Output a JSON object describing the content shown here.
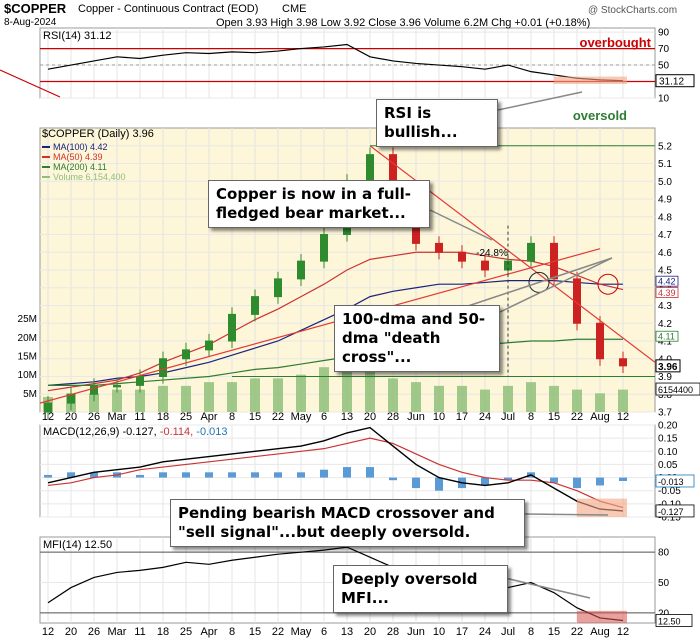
{
  "header": {
    "symbol": "$COPPER",
    "name": "Copper - Continuous Contract (EOD)",
    "exchange": "CME",
    "date": "8-Aug-2024",
    "ohlc": "Open 3.93  High 3.98  Low 3.92  Close 3.96  Volume 6.2M  Chg +0.01 (+0.18%)",
    "watermark": "@ StockCharts.com"
  },
  "annotations": {
    "overbought": "overbought",
    "oversold": "oversold",
    "rsi_note": "RSI is bullish...",
    "bear_note": "Copper is now in a full-fledged bear market...",
    "cross_note": "100-dma and 50-dma \"death cross\"...",
    "pct_drop": "-24.8%",
    "macd_note": "Pending bearish MACD crossover and \"sell signal\"...but deeply oversold.",
    "mfi_note": "Deeply oversold MFI..."
  },
  "colors": {
    "up": "#2e8b2e",
    "down": "#cc2222",
    "rsi_line": "#000000",
    "ma100": "#1a237e",
    "ma50": "#cc3333",
    "ma200": "#2e7d32",
    "volume": "#8fbf7a",
    "trend": "#e53935",
    "highlight": "#f4a582"
  },
  "chart_data": [
    {
      "type": "line",
      "title": "RSI(14) 31.12",
      "value_label": "31.12",
      "levels": [
        70,
        30
      ],
      "ylim": [
        10,
        95
      ],
      "y_ticks": [
        "90",
        "70",
        "50",
        "30",
        "10"
      ],
      "x": [
        "12",
        "20",
        "26",
        "Mar",
        "11",
        "18",
        "25",
        "Apr",
        "8",
        "15",
        "22",
        "May",
        "6",
        "13",
        "20",
        "28",
        "Jun",
        "10",
        "17",
        "24",
        "Jul",
        "8",
        "15",
        "22",
        "Aug",
        "12"
      ],
      "series": [
        {
          "name": "RSI(14)",
          "values": [
            45,
            50,
            55,
            60,
            58,
            62,
            65,
            64,
            66,
            65,
            67,
            70,
            72,
            75,
            60,
            55,
            52,
            50,
            48,
            45,
            50,
            42,
            38,
            34,
            32,
            31
          ]
        }
      ]
    },
    {
      "type": "candlestick",
      "title": "$COPPER (Daily) 3.96",
      "legend": [
        "MA(100) 4.42",
        "MA(50) 4.39",
        "MA(200) 4.11",
        "Volume 6,154,400"
      ],
      "last_price_label": "3.96",
      "ma_labels": [
        "4.42",
        "4.39",
        "4.11"
      ],
      "ylim": [
        3.7,
        5.3
      ],
      "y_ticks": [
        "5.2",
        "5.1",
        "5.0",
        "4.9",
        "4.8",
        "4.7",
        "4.6",
        "4.5",
        "4.4",
        "4.3",
        "4.2",
        "4.1",
        "4.0",
        "3.9",
        "3.8",
        "3.7"
      ],
      "volume_ticks": [
        "25M",
        "20M",
        "15M",
        "10M",
        "5M"
      ],
      "volume_label": "6154400",
      "x": [
        "12",
        "20",
        "26",
        "Mar",
        "11",
        "18",
        "25",
        "Apr",
        "8",
        "15",
        "22",
        "May",
        "6",
        "13",
        "20",
        "28",
        "Jun",
        "10",
        "17",
        "24",
        "Jul",
        "8",
        "15",
        "22",
        "Aug",
        "12"
      ],
      "close": [
        3.75,
        3.8,
        3.85,
        3.85,
        3.9,
        4.0,
        4.05,
        4.1,
        4.25,
        4.35,
        4.45,
        4.55,
        4.7,
        5.0,
        5.15,
        4.85,
        4.65,
        4.6,
        4.55,
        4.5,
        4.55,
        4.65,
        4.45,
        4.2,
        4.0,
        3.96
      ],
      "series": [
        {
          "name": "MA(100)",
          "values": [
            3.85,
            3.86,
            3.87,
            3.89,
            3.9,
            3.92,
            3.95,
            3.98,
            4.02,
            4.06,
            4.1,
            4.16,
            4.22,
            4.28,
            4.35,
            4.38,
            4.4,
            4.42,
            4.42,
            4.43,
            4.44,
            4.44,
            4.44,
            4.43,
            4.42,
            4.42
          ]
        },
        {
          "name": "MA(50)",
          "values": [
            3.82,
            3.84,
            3.86,
            3.88,
            3.92,
            3.98,
            4.03,
            4.08,
            4.15,
            4.22,
            4.28,
            4.35,
            4.42,
            4.5,
            4.56,
            4.58,
            4.6,
            4.6,
            4.6,
            4.58,
            4.56,
            4.55,
            4.52,
            4.47,
            4.42,
            4.39
          ]
        },
        {
          "name": "MA(200)",
          "values": [
            3.85,
            3.85,
            3.85,
            3.86,
            3.87,
            3.88,
            3.89,
            3.9,
            3.92,
            3.94,
            3.95,
            3.97,
            3.99,
            4.01,
            4.03,
            4.04,
            4.05,
            4.06,
            4.07,
            4.08,
            4.09,
            4.1,
            4.1,
            4.11,
            4.11,
            4.11
          ]
        }
      ],
      "volume_m": [
        4,
        5,
        5,
        6,
        6,
        7,
        7,
        8,
        8,
        9,
        9,
        10,
        12,
        15,
        13,
        9,
        8,
        7,
        7,
        6,
        7,
        8,
        7,
        6,
        5,
        6
      ]
    },
    {
      "type": "line",
      "title": "MACD(12,26,9) -0.127, -0.114, -0.013",
      "macd_label": "-0.127",
      "signal_label": "-0.114",
      "hist_label": "-0.013",
      "ylim": [
        -0.15,
        0.2
      ],
      "y_ticks": [
        "0.20",
        "0.15",
        "0.10",
        "0.05",
        "0.00",
        "-0.05",
        "-0.10",
        "-0.15"
      ],
      "x": [
        "12",
        "20",
        "26",
        "Mar",
        "11",
        "18",
        "25",
        "Apr",
        "8",
        "15",
        "22",
        "May",
        "6",
        "13",
        "20",
        "28",
        "Jun",
        "10",
        "17",
        "24",
        "Jul",
        "8",
        "15",
        "22",
        "Aug",
        "12"
      ],
      "series": [
        {
          "name": "MACD",
          "values": [
            -0.02,
            0.0,
            0.02,
            0.03,
            0.04,
            0.06,
            0.07,
            0.08,
            0.09,
            0.1,
            0.11,
            0.12,
            0.14,
            0.17,
            0.19,
            0.12,
            0.05,
            0.0,
            -0.02,
            -0.03,
            -0.02,
            0.01,
            -0.04,
            -0.09,
            -0.12,
            -0.127
          ]
        },
        {
          "name": "Signal",
          "values": [
            -0.03,
            -0.02,
            0.0,
            0.01,
            0.03,
            0.04,
            0.05,
            0.06,
            0.07,
            0.08,
            0.09,
            0.1,
            0.11,
            0.13,
            0.15,
            0.13,
            0.09,
            0.05,
            0.02,
            0.0,
            -0.01,
            -0.01,
            -0.02,
            -0.05,
            -0.09,
            -0.114
          ]
        }
      ],
      "histogram": [
        0.01,
        0.02,
        0.02,
        0.02,
        0.01,
        0.02,
        0.02,
        0.02,
        0.02,
        0.02,
        0.02,
        0.02,
        0.03,
        0.04,
        0.04,
        -0.01,
        -0.04,
        -0.05,
        -0.04,
        -0.03,
        -0.01,
        0.02,
        -0.02,
        -0.04,
        -0.03,
        -0.013
      ]
    },
    {
      "type": "line",
      "title": "MFI(14) 12.50",
      "value_label": "12.50",
      "levels": [
        80,
        20
      ],
      "ylim": [
        10,
        95
      ],
      "y_ticks": [
        "80",
        "50",
        "20"
      ],
      "x": [
        "12",
        "20",
        "26",
        "Mar",
        "11",
        "18",
        "25",
        "Apr",
        "8",
        "15",
        "22",
        "May",
        "6",
        "13",
        "20",
        "28",
        "Jun",
        "10",
        "17",
        "24",
        "Jul",
        "8",
        "15",
        "22",
        "Aug",
        "12"
      ],
      "series": [
        {
          "name": "MFI(14)",
          "values": [
            30,
            45,
            55,
            60,
            62,
            65,
            70,
            68,
            72,
            75,
            78,
            80,
            82,
            85,
            75,
            65,
            55,
            45,
            42,
            40,
            45,
            50,
            40,
            25,
            15,
            12.5
          ]
        }
      ]
    }
  ]
}
